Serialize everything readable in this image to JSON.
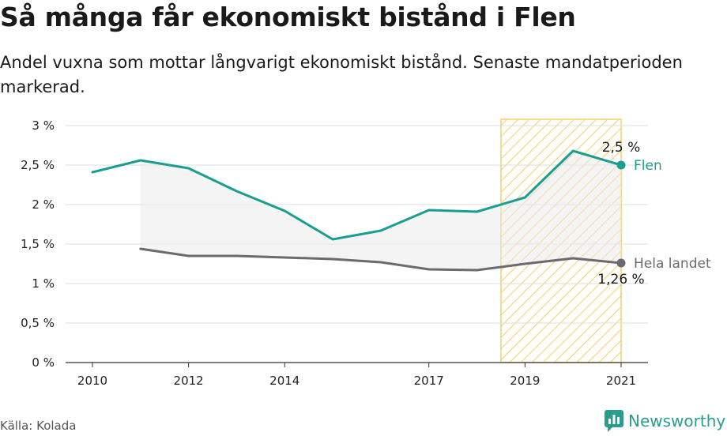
{
  "header": {
    "title": "Så många får ekonomiskt bistånd i Flen",
    "subtitle": "Andel vuxna som mottar långvarigt ekonomiskt bistånd. Senaste mandatperioden markerad."
  },
  "footer": {
    "source": "Källa: Kolada",
    "brand": "Newsworthy"
  },
  "colors": {
    "flen": "#1a9e8f",
    "riket": "#6b6a70",
    "highlight": "#f5cf6a",
    "grid": "#dddddd"
  },
  "chart_data": {
    "type": "line",
    "title": "Så många får ekonomiskt bistånd i Flen",
    "xlim": [
      2010,
      2021
    ],
    "ylim": [
      0,
      3
    ],
    "x_ticks": [
      2010,
      2012,
      2014,
      2017,
      2019,
      2021
    ],
    "x_tick_labels": [
      "2010",
      "2012",
      "2014",
      "2017",
      "2019",
      "2021"
    ],
    "y_ticks": [
      0,
      0.5,
      1,
      1.5,
      2,
      2.5,
      3
    ],
    "y_tick_labels": [
      "0 %",
      "0,5 %",
      "1 %",
      "1,5 %",
      "2 %",
      "2,5 %",
      "3 %"
    ],
    "highlight_range": [
      2018.5,
      2021
    ],
    "series": [
      {
        "name": "Flen",
        "x": [
          2010,
          2011,
          2012,
          2013,
          2014,
          2015,
          2016,
          2017,
          2018,
          2019,
          2020,
          2021
        ],
        "values": [
          2.41,
          2.56,
          2.46,
          2.17,
          1.92,
          1.56,
          1.67,
          1.93,
          1.91,
          2.09,
          2.68,
          2.5
        ],
        "end_label": "2,5 %"
      },
      {
        "name": "Hela landet",
        "x": [
          2011,
          2012,
          2013,
          2014,
          2015,
          2016,
          2017,
          2018,
          2019,
          2020,
          2021
        ],
        "values": [
          1.44,
          1.35,
          1.35,
          1.33,
          1.31,
          1.27,
          1.18,
          1.17,
          1.25,
          1.32,
          1.26
        ],
        "end_label": "1,26 %"
      }
    ],
    "grid": true,
    "legend": "inline-end-labels"
  }
}
